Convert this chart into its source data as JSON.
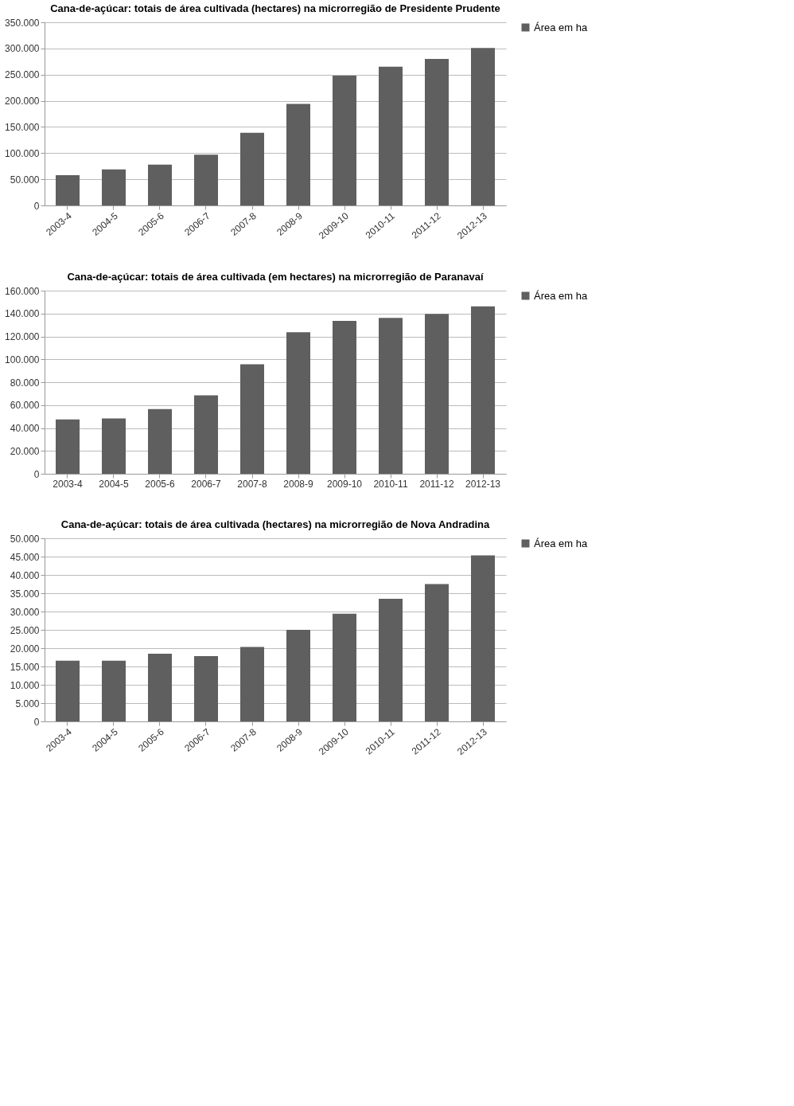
{
  "chart_data": [
    {
      "type": "bar",
      "title": "Cana-de-açúcar: totais de área cultivada (hectares) na microrregião de Presidente Prudente",
      "categories": [
        "2003-4",
        "2004-5",
        "2005-6",
        "2006-7",
        "2007-8",
        "2008-9",
        "2009-10",
        "2010-11",
        "2011-12",
        "2012-13"
      ],
      "series": [
        {
          "name": "Área em ha",
          "color": "#5f5f5f",
          "values": [
            58000,
            69000,
            78000,
            97000,
            139000,
            194000,
            248000,
            265000,
            280000,
            301000
          ]
        }
      ],
      "ylim": [
        0,
        350000
      ],
      "yticks": [
        0,
        {
          "value": 50000,
          "label": "50.000"
        },
        {
          "value": 100000,
          "label": "100.000"
        },
        {
          "value": 150000,
          "label": "150.000"
        },
        {
          "value": 200000,
          "label": "200.000"
        },
        {
          "value": 250000,
          "label": "250.000"
        },
        {
          "value": 300000,
          "label": "300.000"
        },
        {
          "value": 350000,
          "label": "350.000"
        }
      ],
      "grid": "y",
      "legend": "right"
    },
    {
      "type": "bar",
      "title": "Cana-de-açúcar: totais de área cultivada (em hectares) na microrregião de Paranavaí",
      "categories": [
        "2003-4",
        "2004-5",
        "2005-6",
        "2006-7",
        "2007-8",
        "2008-9",
        "2009-10",
        "2010-11",
        "2011-12",
        "2012-13"
      ],
      "series": [
        {
          "name": "Área em ha",
          "color": "#5f5f5f",
          "values": [
            47500,
            48300,
            56600,
            68600,
            95600,
            123600,
            133500,
            136200,
            139700,
            146300
          ]
        }
      ],
      "ylim": [
        0,
        160000
      ],
      "yticks": [
        0,
        {
          "value": 20000,
          "label": "20.000"
        },
        {
          "value": 40000,
          "label": "40.000"
        },
        {
          "value": 60000,
          "label": "60.000"
        },
        {
          "value": 80000,
          "label": "80.000"
        },
        {
          "value": 100000,
          "label": "100.000"
        },
        {
          "value": 120000,
          "label": "120.000"
        },
        {
          "value": 140000,
          "label": "140.000"
        },
        {
          "value": 160000,
          "label": "160.000"
        }
      ],
      "grid": "y",
      "legend": "right"
    },
    {
      "type": "bar",
      "title": "Cana-de-açúcar: totais de área cultivada (hectares) na microrregião de Nova Andradina",
      "categories": [
        "2003-4",
        "2004-5",
        "2005-6",
        "2006-7",
        "2007-8",
        "2008-9",
        "2009-10",
        "2010-11",
        "2011-12",
        "2012-13"
      ],
      "series": [
        {
          "name": "Área em ha",
          "color": "#5f5f5f",
          "values": [
            16600,
            16600,
            18500,
            17800,
            20300,
            25000,
            29400,
            33500,
            37500,
            45300
          ]
        }
      ],
      "ylim": [
        0,
        50000
      ],
      "yticks": [
        0,
        {
          "value": 5000,
          "label": "5.000"
        },
        {
          "value": 10000,
          "label": "10.000"
        },
        {
          "value": 15000,
          "label": "15.000"
        },
        {
          "value": 20000,
          "label": "20.000"
        },
        {
          "value": 25000,
          "label": "25.000"
        },
        {
          "value": 30000,
          "label": "30.000"
        },
        {
          "value": 35000,
          "label": "35.000"
        },
        {
          "value": 40000,
          "label": "40.000"
        },
        {
          "value": 45000,
          "label": "45.000"
        },
        {
          "value": 50000,
          "label": "50.000"
        }
      ],
      "grid": "y",
      "legend": "right"
    }
  ]
}
